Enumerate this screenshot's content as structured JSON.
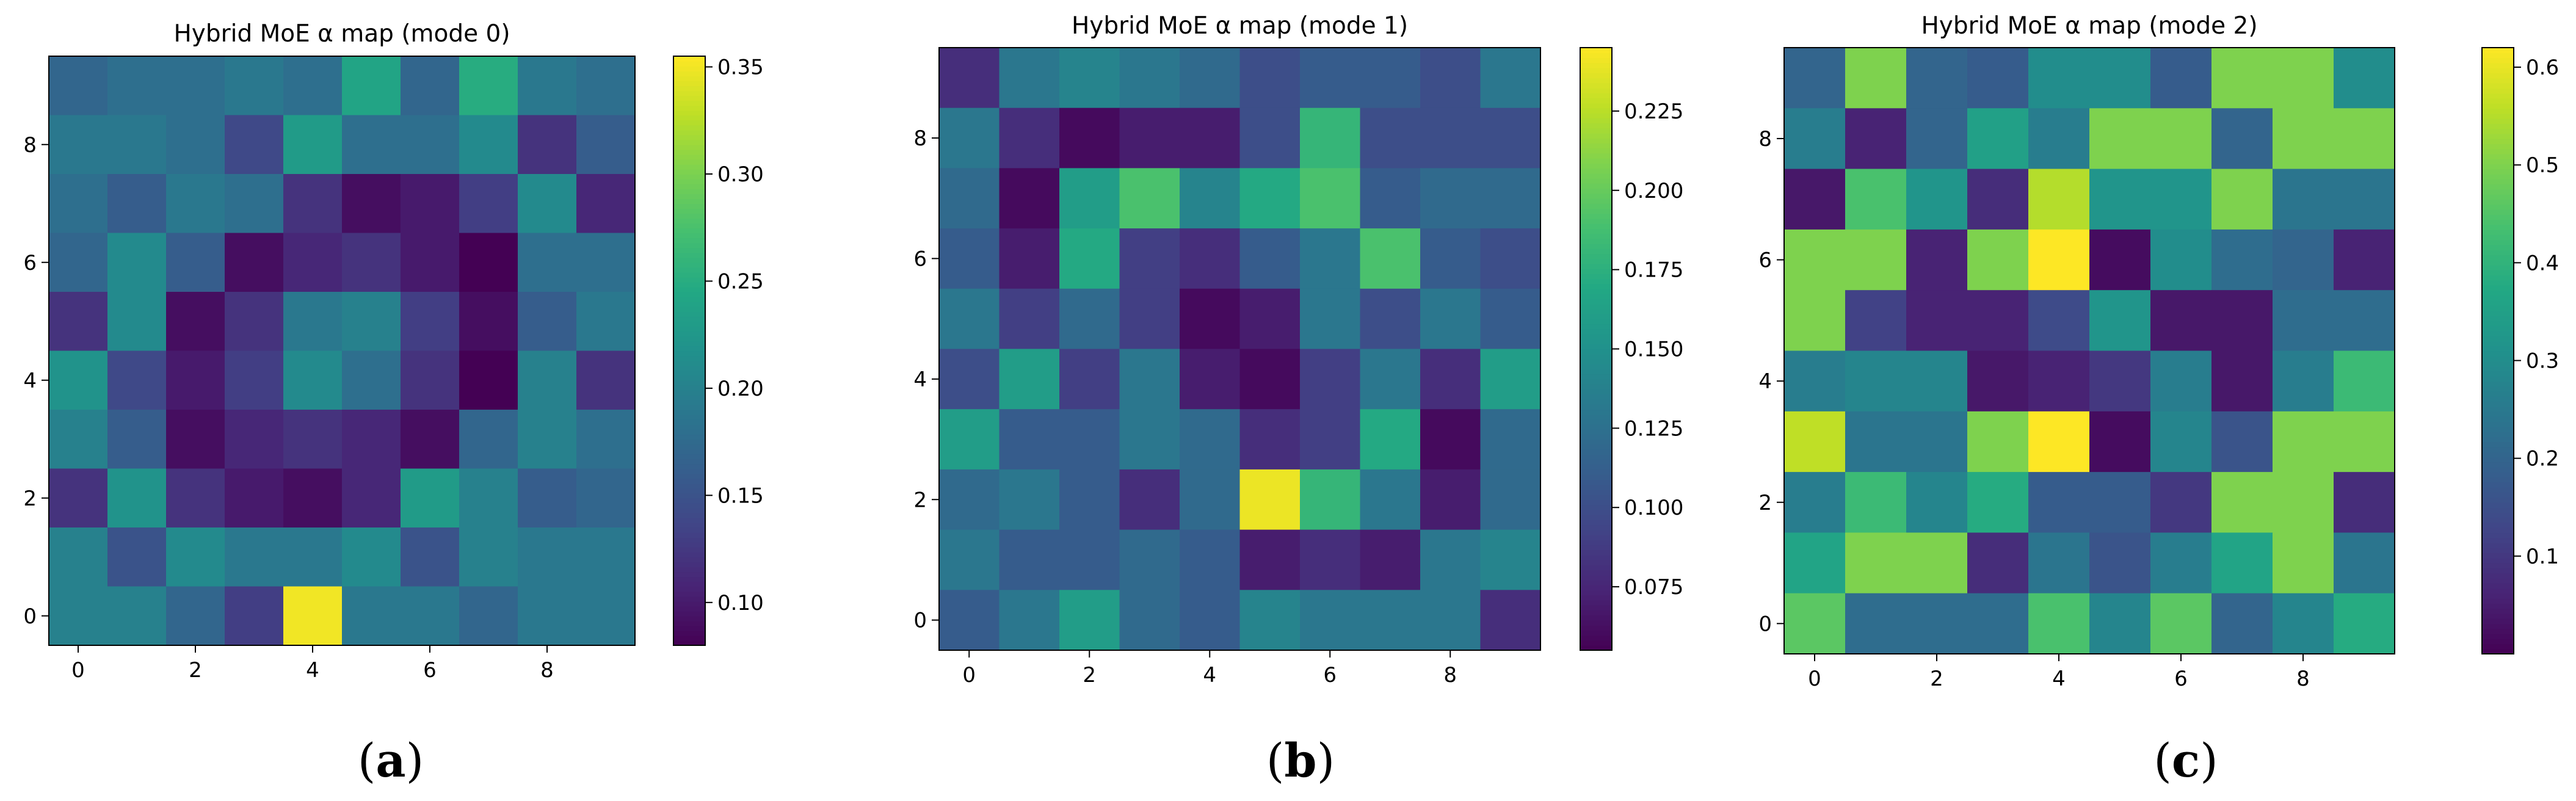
{
  "chart_data": [
    {
      "type": "heatmap",
      "title": "Hybrid MoE α map (mode 0)",
      "panel_label": "a",
      "x_ticks": [
        0,
        2,
        4,
        6,
        8
      ],
      "y_ticks": [
        0,
        2,
        4,
        6,
        8
      ],
      "colormap": "viridis",
      "vmin": 0.08,
      "vmax": 0.355,
      "colorbar_ticks": [
        0.1,
        0.15,
        0.2,
        0.25,
        0.3,
        0.35
      ],
      "colorbar_tick_labels": [
        "0.10",
        "0.15",
        "0.20",
        "0.25",
        "0.30",
        "0.35"
      ],
      "grid": false,
      "rows_top_to_bottom": [
        [
          0.17,
          0.18,
          0.18,
          0.19,
          0.18,
          0.24,
          0.17,
          0.25,
          0.19,
          0.18
        ],
        [
          0.19,
          0.19,
          0.18,
          0.14,
          0.23,
          0.18,
          0.18,
          0.21,
          0.12,
          0.16
        ],
        [
          0.18,
          0.16,
          0.19,
          0.18,
          0.12,
          0.09,
          0.1,
          0.13,
          0.21,
          0.11
        ],
        [
          0.17,
          0.21,
          0.16,
          0.09,
          0.11,
          0.12,
          0.1,
          0.08,
          0.18,
          0.18
        ],
        [
          0.12,
          0.21,
          0.09,
          0.12,
          0.19,
          0.2,
          0.13,
          0.09,
          0.16,
          0.19
        ],
        [
          0.22,
          0.14,
          0.1,
          0.13,
          0.21,
          0.18,
          0.12,
          0.08,
          0.2,
          0.12
        ],
        [
          0.2,
          0.16,
          0.09,
          0.11,
          0.12,
          0.11,
          0.09,
          0.17,
          0.2,
          0.18
        ],
        [
          0.12,
          0.22,
          0.12,
          0.1,
          0.09,
          0.11,
          0.23,
          0.2,
          0.16,
          0.17
        ],
        [
          0.2,
          0.15,
          0.21,
          0.19,
          0.19,
          0.21,
          0.15,
          0.2,
          0.19,
          0.19
        ],
        [
          0.2,
          0.2,
          0.17,
          0.13,
          0.35,
          0.19,
          0.19,
          0.17,
          0.19,
          0.19
        ]
      ]
    },
    {
      "type": "heatmap",
      "title": "Hybrid MoE α map (mode 1)",
      "panel_label": "b",
      "x_ticks": [
        0,
        2,
        4,
        6,
        8
      ],
      "y_ticks": [
        0,
        2,
        4,
        6,
        8
      ],
      "colormap": "viridis",
      "vmin": 0.055,
      "vmax": 0.245,
      "colorbar_ticks": [
        0.075,
        0.1,
        0.125,
        0.15,
        0.175,
        0.2,
        0.225
      ],
      "colorbar_tick_labels": [
        "0.075",
        "0.100",
        "0.125",
        "0.150",
        "0.175",
        "0.200",
        "0.225"
      ],
      "grid": false,
      "rows_top_to_bottom": [
        [
          0.08,
          0.13,
          0.14,
          0.13,
          0.12,
          0.1,
          0.11,
          0.11,
          0.1,
          0.13
        ],
        [
          0.13,
          0.08,
          0.06,
          0.07,
          0.07,
          0.1,
          0.18,
          0.1,
          0.1,
          0.1
        ],
        [
          0.12,
          0.06,
          0.16,
          0.19,
          0.14,
          0.17,
          0.19,
          0.11,
          0.12,
          0.12
        ],
        [
          0.11,
          0.07,
          0.17,
          0.09,
          0.08,
          0.11,
          0.13,
          0.19,
          0.11,
          0.1
        ],
        [
          0.13,
          0.09,
          0.12,
          0.09,
          0.06,
          0.07,
          0.13,
          0.1,
          0.13,
          0.11
        ],
        [
          0.1,
          0.16,
          0.09,
          0.13,
          0.07,
          0.06,
          0.09,
          0.13,
          0.08,
          0.16
        ],
        [
          0.16,
          0.11,
          0.11,
          0.13,
          0.12,
          0.08,
          0.09,
          0.17,
          0.06,
          0.12
        ],
        [
          0.12,
          0.13,
          0.11,
          0.08,
          0.12,
          0.24,
          0.18,
          0.13,
          0.07,
          0.12
        ],
        [
          0.13,
          0.11,
          0.11,
          0.12,
          0.11,
          0.07,
          0.08,
          0.07,
          0.13,
          0.14
        ],
        [
          0.11,
          0.13,
          0.16,
          0.12,
          0.11,
          0.14,
          0.13,
          0.13,
          0.13,
          0.08
        ]
      ]
    },
    {
      "type": "heatmap",
      "title": "Hybrid MoE α map (mode 2)",
      "panel_label": "c",
      "x_ticks": [
        0,
        2,
        4,
        6,
        8
      ],
      "y_ticks": [
        0,
        2,
        4,
        6,
        8
      ],
      "colormap": "viridis",
      "vmin": 0.0,
      "vmax": 0.62,
      "colorbar_ticks": [
        0.1,
        0.2,
        0.3,
        0.4,
        0.5,
        0.6
      ],
      "colorbar_tick_labels": [
        "0.1",
        "0.2",
        "0.3",
        "0.4",
        "0.5",
        "0.6"
      ],
      "grid": false,
      "rows_top_to_bottom": [
        [
          0.2,
          0.5,
          0.2,
          0.18,
          0.3,
          0.3,
          0.18,
          0.5,
          0.5,
          0.3
        ],
        [
          0.26,
          0.06,
          0.2,
          0.35,
          0.26,
          0.5,
          0.5,
          0.2,
          0.5,
          0.5
        ],
        [
          0.04,
          0.44,
          0.32,
          0.08,
          0.55,
          0.32,
          0.32,
          0.5,
          0.24,
          0.24
        ],
        [
          0.5,
          0.5,
          0.06,
          0.5,
          0.62,
          0.02,
          0.3,
          0.22,
          0.2,
          0.06
        ],
        [
          0.5,
          0.12,
          0.06,
          0.06,
          0.14,
          0.32,
          0.04,
          0.04,
          0.22,
          0.22
        ],
        [
          0.26,
          0.28,
          0.28,
          0.04,
          0.06,
          0.1,
          0.26,
          0.04,
          0.26,
          0.42
        ],
        [
          0.56,
          0.24,
          0.24,
          0.5,
          0.62,
          0.02,
          0.28,
          0.16,
          0.5,
          0.5
        ],
        [
          0.26,
          0.42,
          0.28,
          0.38,
          0.18,
          0.18,
          0.1,
          0.5,
          0.5,
          0.08
        ],
        [
          0.36,
          0.5,
          0.5,
          0.08,
          0.24,
          0.16,
          0.26,
          0.36,
          0.5,
          0.24
        ],
        [
          0.46,
          0.22,
          0.22,
          0.22,
          0.44,
          0.28,
          0.46,
          0.2,
          0.28,
          0.38
        ]
      ]
    }
  ]
}
